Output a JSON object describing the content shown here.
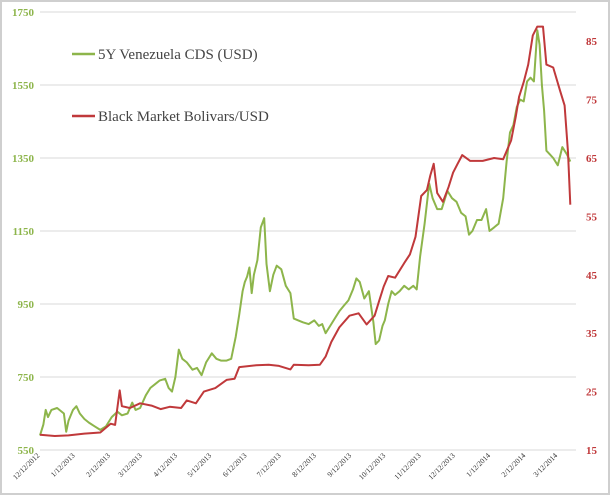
{
  "chart_data": {
    "type": "line",
    "colors": {
      "cds": "#8DB54B",
      "bolivar": "#C0393B",
      "left_axis": "#8DB54B",
      "right_axis": "#C0393B",
      "grid": "#d9d9d9"
    },
    "legend": {
      "placement": "top-left"
    },
    "grid": {
      "horizontal": true,
      "vertical": false
    },
    "x_axis": {
      "range": [
        "2012-12-12",
        "2014-03-28"
      ],
      "ticks": [
        {
          "date": "2012-12-12",
          "label": "12/12/2012"
        },
        {
          "date": "2013-01-12",
          "label": "1/12/2013"
        },
        {
          "date": "2013-02-12",
          "label": "2/12/2013"
        },
        {
          "date": "2013-03-12",
          "label": "3/12/2013"
        },
        {
          "date": "2013-04-12",
          "label": "4/12/2013"
        },
        {
          "date": "2013-05-12",
          "label": "5/12/2013"
        },
        {
          "date": "2013-06-12",
          "label": "6/12/2013"
        },
        {
          "date": "2013-07-12",
          "label": "7/12/2013"
        },
        {
          "date": "2013-08-12",
          "label": "8/12/2013"
        },
        {
          "date": "2013-09-12",
          "label": "9/12/2013"
        },
        {
          "date": "2013-10-12",
          "label": "10/12/2013"
        },
        {
          "date": "2013-11-12",
          "label": "11/12/2013"
        },
        {
          "date": "2013-12-12",
          "label": "12/12/2013"
        },
        {
          "date": "2014-01-12",
          "label": "1/12/2014"
        },
        {
          "date": "2014-02-12",
          "label": "2/12/2014"
        },
        {
          "date": "2014-03-12",
          "label": "3/12/2014"
        }
      ]
    },
    "y_left": {
      "range": [
        550,
        1750
      ],
      "ticks": [
        "550",
        "750",
        "950",
        "1150",
        "1350",
        "1550",
        "1750"
      ]
    },
    "y_right": {
      "range": [
        15,
        90
      ],
      "ticks": [
        "15",
        "25",
        "35",
        "45",
        "55",
        "65",
        "75",
        "85"
      ]
    },
    "series": [
      {
        "name": "5Y Venezuela CDS (USD)",
        "axis": "left",
        "points": [
          [
            "2012-12-12",
            590
          ],
          [
            "2012-12-15",
            620
          ],
          [
            "2012-12-17",
            660
          ],
          [
            "2012-12-19",
            640
          ],
          [
            "2012-12-22",
            660
          ],
          [
            "2012-12-27",
            665
          ],
          [
            "2013-01-02",
            650
          ],
          [
            "2013-01-04",
            600
          ],
          [
            "2013-01-06",
            630
          ],
          [
            "2013-01-10",
            660
          ],
          [
            "2013-01-13",
            670
          ],
          [
            "2013-01-16",
            650
          ],
          [
            "2013-01-20",
            635
          ],
          [
            "2013-01-24",
            625
          ],
          [
            "2013-01-29",
            615
          ],
          [
            "2013-02-03",
            605
          ],
          [
            "2013-02-08",
            615
          ],
          [
            "2013-02-13",
            640
          ],
          [
            "2013-02-18",
            655
          ],
          [
            "2013-02-22",
            645
          ],
          [
            "2013-02-27",
            650
          ],
          [
            "2013-03-03",
            680
          ],
          [
            "2013-03-06",
            660
          ],
          [
            "2013-03-10",
            665
          ],
          [
            "2013-03-15",
            700
          ],
          [
            "2013-03-19",
            720
          ],
          [
            "2013-03-23",
            730
          ],
          [
            "2013-03-27",
            740
          ],
          [
            "2013-04-01",
            745
          ],
          [
            "2013-04-04",
            720
          ],
          [
            "2013-04-07",
            710
          ],
          [
            "2013-04-10",
            750
          ],
          [
            "2013-04-13",
            825
          ],
          [
            "2013-04-16",
            800
          ],
          [
            "2013-04-20",
            790
          ],
          [
            "2013-04-25",
            770
          ],
          [
            "2013-04-29",
            775
          ],
          [
            "2013-05-03",
            755
          ],
          [
            "2013-05-07",
            790
          ],
          [
            "2013-05-12",
            815
          ],
          [
            "2013-05-16",
            800
          ],
          [
            "2013-05-20",
            795
          ],
          [
            "2013-05-25",
            795
          ],
          [
            "2013-05-29",
            800
          ],
          [
            "2013-06-02",
            860
          ],
          [
            "2013-06-05",
            920
          ],
          [
            "2013-06-08",
            985
          ],
          [
            "2013-06-10",
            1010
          ],
          [
            "2013-06-12",
            1025
          ],
          [
            "2013-06-14",
            1050
          ],
          [
            "2013-06-16",
            980
          ],
          [
            "2013-06-18",
            1030
          ],
          [
            "2013-06-21",
            1070
          ],
          [
            "2013-06-24",
            1160
          ],
          [
            "2013-06-27",
            1185
          ],
          [
            "2013-06-29",
            1060
          ],
          [
            "2013-07-02",
            985
          ],
          [
            "2013-07-05",
            1030
          ],
          [
            "2013-07-08",
            1055
          ],
          [
            "2013-07-12",
            1045
          ],
          [
            "2013-07-16",
            1000
          ],
          [
            "2013-07-20",
            980
          ],
          [
            "2013-07-23",
            910
          ],
          [
            "2013-07-27",
            905
          ],
          [
            "2013-07-31",
            900
          ],
          [
            "2013-08-05",
            895
          ],
          [
            "2013-08-10",
            905
          ],
          [
            "2013-08-14",
            890
          ],
          [
            "2013-08-17",
            895
          ],
          [
            "2013-08-20",
            870
          ],
          [
            "2013-08-24",
            890
          ],
          [
            "2013-08-28",
            910
          ],
          [
            "2013-09-01",
            930
          ],
          [
            "2013-09-05",
            945
          ],
          [
            "2013-09-09",
            960
          ],
          [
            "2013-09-13",
            990
          ],
          [
            "2013-09-16",
            1020
          ],
          [
            "2013-09-19",
            1010
          ],
          [
            "2013-09-23",
            965
          ],
          [
            "2013-09-27",
            985
          ],
          [
            "2013-10-01",
            900
          ],
          [
            "2013-10-03",
            840
          ],
          [
            "2013-10-06",
            850
          ],
          [
            "2013-10-09",
            890
          ],
          [
            "2013-10-11",
            905
          ],
          [
            "2013-10-14",
            950
          ],
          [
            "2013-10-17",
            985
          ],
          [
            "2013-10-20",
            975
          ],
          [
            "2013-10-24",
            985
          ],
          [
            "2013-10-28",
            1000
          ],
          [
            "2013-11-01",
            990
          ],
          [
            "2013-11-05",
            1000
          ],
          [
            "2013-11-08",
            990
          ],
          [
            "2013-11-11",
            1080
          ],
          [
            "2013-11-15",
            1170
          ],
          [
            "2013-11-19",
            1280
          ],
          [
            "2013-11-22",
            1240
          ],
          [
            "2013-11-26",
            1210
          ],
          [
            "2013-11-30",
            1210
          ],
          [
            "2013-12-05",
            1260
          ],
          [
            "2013-12-09",
            1240
          ],
          [
            "2013-12-13",
            1230
          ],
          [
            "2013-12-17",
            1200
          ],
          [
            "2013-12-21",
            1190
          ],
          [
            "2013-12-24",
            1140
          ],
          [
            "2013-12-27",
            1150
          ],
          [
            "2013-12-31",
            1180
          ],
          [
            "2014-01-04",
            1180
          ],
          [
            "2014-01-08",
            1210
          ],
          [
            "2014-01-11",
            1150
          ],
          [
            "2014-01-15",
            1160
          ],
          [
            "2014-01-19",
            1170
          ],
          [
            "2014-01-23",
            1240
          ],
          [
            "2014-01-26",
            1340
          ],
          [
            "2014-01-29",
            1420
          ],
          [
            "2014-02-01",
            1440
          ],
          [
            "2014-02-04",
            1490
          ],
          [
            "2014-02-07",
            1510
          ],
          [
            "2014-02-10",
            1505
          ],
          [
            "2014-02-13",
            1560
          ],
          [
            "2014-02-16",
            1570
          ],
          [
            "2014-02-19",
            1560
          ],
          [
            "2014-02-22",
            1700
          ],
          [
            "2014-02-24",
            1660
          ],
          [
            "2014-02-26",
            1550
          ],
          [
            "2014-02-28",
            1480
          ],
          [
            "2014-03-02",
            1370
          ],
          [
            "2014-03-05",
            1360
          ],
          [
            "2014-03-08",
            1350
          ],
          [
            "2014-03-12",
            1330
          ],
          [
            "2014-03-16",
            1380
          ],
          [
            "2014-03-20",
            1360
          ],
          [
            "2014-03-23",
            1340
          ]
        ]
      },
      {
        "name": "Black Market Bolivars/USD",
        "axis": "right",
        "points": [
          [
            "2012-12-12",
            17.6
          ],
          [
            "2012-12-25",
            17.4
          ],
          [
            "2013-01-06",
            17.5
          ],
          [
            "2013-01-20",
            17.8
          ],
          [
            "2013-02-03",
            18.0
          ],
          [
            "2013-02-12",
            19.5
          ],
          [
            "2013-02-16",
            19.3
          ],
          [
            "2013-02-20",
            25.2
          ],
          [
            "2013-02-22",
            22.5
          ],
          [
            "2013-03-01",
            22.2
          ],
          [
            "2013-03-10",
            23.0
          ],
          [
            "2013-03-20",
            22.6
          ],
          [
            "2013-03-28",
            22.0
          ],
          [
            "2013-04-05",
            22.4
          ],
          [
            "2013-04-15",
            22.2
          ],
          [
            "2013-04-20",
            23.5
          ],
          [
            "2013-04-28",
            23.0
          ],
          [
            "2013-05-05",
            25.0
          ],
          [
            "2013-05-15",
            25.6
          ],
          [
            "2013-05-25",
            27.0
          ],
          [
            "2013-06-01",
            27.2
          ],
          [
            "2013-06-05",
            29.2
          ],
          [
            "2013-06-20",
            29.5
          ],
          [
            "2013-07-01",
            29.6
          ],
          [
            "2013-07-10",
            29.4
          ],
          [
            "2013-07-20",
            28.8
          ],
          [
            "2013-07-23",
            29.6
          ],
          [
            "2013-08-05",
            29.5
          ],
          [
            "2013-08-15",
            29.6
          ],
          [
            "2013-08-20",
            31.0
          ],
          [
            "2013-08-25",
            33.5
          ],
          [
            "2013-09-01",
            36.0
          ],
          [
            "2013-09-10",
            38.0
          ],
          [
            "2013-09-18",
            38.4
          ],
          [
            "2013-09-25",
            36.5
          ],
          [
            "2013-10-02",
            38.0
          ],
          [
            "2013-10-06",
            40.5
          ],
          [
            "2013-10-10",
            43.0
          ],
          [
            "2013-10-14",
            44.8
          ],
          [
            "2013-10-20",
            44.5
          ],
          [
            "2013-10-28",
            47.0
          ],
          [
            "2013-11-02",
            48.5
          ],
          [
            "2013-11-07",
            51.5
          ],
          [
            "2013-11-12",
            58.5
          ],
          [
            "2013-11-17",
            59.5
          ],
          [
            "2013-11-20",
            62.0
          ],
          [
            "2013-11-23",
            64.0
          ],
          [
            "2013-11-26",
            59.0
          ],
          [
            "2013-12-01",
            57.5
          ],
          [
            "2013-12-06",
            60.0
          ],
          [
            "2013-12-10",
            62.5
          ],
          [
            "2013-12-14",
            64.0
          ],
          [
            "2013-12-18",
            65.5
          ],
          [
            "2013-12-25",
            64.5
          ],
          [
            "2014-01-05",
            64.5
          ],
          [
            "2014-01-15",
            65.0
          ],
          [
            "2014-01-23",
            64.8
          ],
          [
            "2014-01-30",
            68.0
          ],
          [
            "2014-02-03",
            72.0
          ],
          [
            "2014-02-06",
            75.5
          ],
          [
            "2014-02-10",
            78.0
          ],
          [
            "2014-02-14",
            81.0
          ],
          [
            "2014-02-18",
            86.0
          ],
          [
            "2014-02-22",
            87.5
          ],
          [
            "2014-02-27",
            87.5
          ],
          [
            "2014-03-02",
            81.0
          ],
          [
            "2014-03-08",
            80.5
          ],
          [
            "2014-03-14",
            76.5
          ],
          [
            "2014-03-18",
            74.0
          ],
          [
            "2014-03-21",
            66.0
          ],
          [
            "2014-03-23",
            57.0
          ]
        ]
      }
    ]
  }
}
